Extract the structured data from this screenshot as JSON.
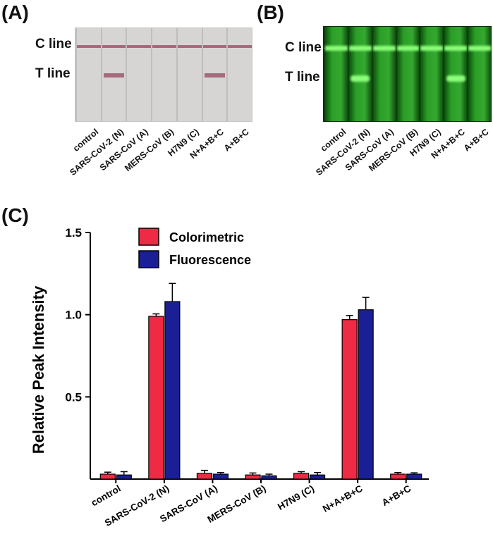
{
  "panels": {
    "a": {
      "label": "(A)",
      "c_line_label": "C line",
      "t_line_label": "T line",
      "lanes": [
        {
          "label": "control",
          "t_band": false
        },
        {
          "label": "SARS-CoV-2 (N)",
          "t_band": true
        },
        {
          "label": "SARS-CoV (A)",
          "t_band": false
        },
        {
          "label": "MERS-CoV (B)",
          "t_band": false
        },
        {
          "label": "H7N9 (C)",
          "t_band": false
        },
        {
          "label": "N+A+B+C",
          "t_band": true
        },
        {
          "label": "A+B+C",
          "t_band": false
        }
      ],
      "colors": {
        "strip": "#d6d5d3",
        "divider": "#bfbebc",
        "band": "#a56a7e"
      }
    },
    "b": {
      "label": "(B)",
      "c_line_label": "C line",
      "t_line_label": "T line",
      "lanes": [
        {
          "label": "control",
          "t_band": false
        },
        {
          "label": "SARS-CoV-2 (N)",
          "t_band": true
        },
        {
          "label": "SARS-CoV (A)",
          "t_band": false
        },
        {
          "label": "MERS-CoV (B)",
          "t_band": false
        },
        {
          "label": "H7N9 (C)",
          "t_band": false
        },
        {
          "label": "N+A+B+C",
          "t_band": true
        },
        {
          "label": "A+B+C",
          "t_band": false
        }
      ],
      "colors": {
        "strip": "#1f8f1c",
        "divider": "#0a3f0a",
        "band": "#8cff7a"
      }
    },
    "c": {
      "label": "(C)"
    }
  },
  "chart_data": {
    "type": "bar",
    "ylabel": "Relative Peak Intensity",
    "xlabel": "",
    "ylim": [
      0,
      1.5
    ],
    "yticks": [
      "0.5",
      "1.0",
      "1.5"
    ],
    "categories": [
      "control",
      "SARS-CoV-2 (N)",
      "SARS-CoV (A)",
      "MERS-CoV (B)",
      "H7N9 (C)",
      "N+A+B+C",
      "A+B+C"
    ],
    "legend_position": "top-left",
    "series": [
      {
        "name": "Colorimetric",
        "color": "#ee2a44",
        "values": [
          0.03,
          0.99,
          0.035,
          0.025,
          0.035,
          0.97,
          0.03
        ],
        "errors": [
          0.012,
          0.015,
          0.018,
          0.012,
          0.01,
          0.025,
          0.01
        ]
      },
      {
        "name": "Fluorescence",
        "color": "#1a1f96",
        "values": [
          0.025,
          1.08,
          0.03,
          0.02,
          0.025,
          1.03,
          0.03
        ],
        "errors": [
          0.02,
          0.11,
          0.01,
          0.01,
          0.015,
          0.075,
          0.008
        ]
      }
    ]
  }
}
